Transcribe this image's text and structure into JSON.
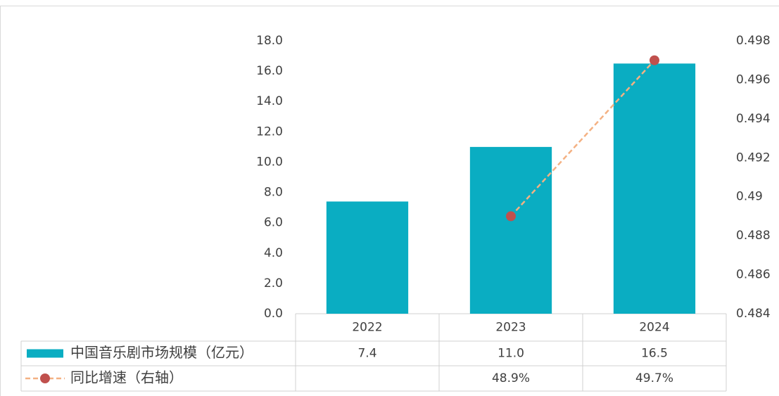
{
  "chart_data": {
    "type": "bar_line_table",
    "categories": [
      "2022",
      "2023",
      "2024"
    ],
    "series": [
      {
        "name": "中国音乐剧市场规模（亿元）",
        "type": "bar",
        "color": "#0aadc2",
        "values": [
          7.4,
          11.0,
          16.5
        ],
        "value_labels": [
          "7.4",
          "11.0",
          "16.5"
        ]
      },
      {
        "name": "同比增速（右轴）",
        "type": "line",
        "axis": "y2",
        "color": "#f4b183",
        "marker_color": "#c0504d",
        "values": [
          null,
          0.489,
          0.497
        ],
        "value_labels": [
          null,
          "48.9%",
          "49.7%"
        ]
      }
    ],
    "ylim": [
      0,
      18
    ],
    "yticks": [
      {
        "value": 0,
        "label": "0.0"
      },
      {
        "value": 2,
        "label": "2.0"
      },
      {
        "value": 4,
        "label": "4.0"
      },
      {
        "value": 6,
        "label": "6.0"
      },
      {
        "value": 8,
        "label": "8.0"
      },
      {
        "value": 10,
        "label": "10.0"
      },
      {
        "value": 12,
        "label": "12.0"
      },
      {
        "value": 14,
        "label": "14.0"
      },
      {
        "value": 16,
        "label": "16.0"
      },
      {
        "value": 18,
        "label": "18.0"
      }
    ],
    "y2lim": [
      0.484,
      0.498
    ],
    "y2ticks": [
      0.484,
      0.486,
      0.488,
      0.49,
      0.492,
      0.494,
      0.496,
      0.498
    ],
    "grid": false
  }
}
